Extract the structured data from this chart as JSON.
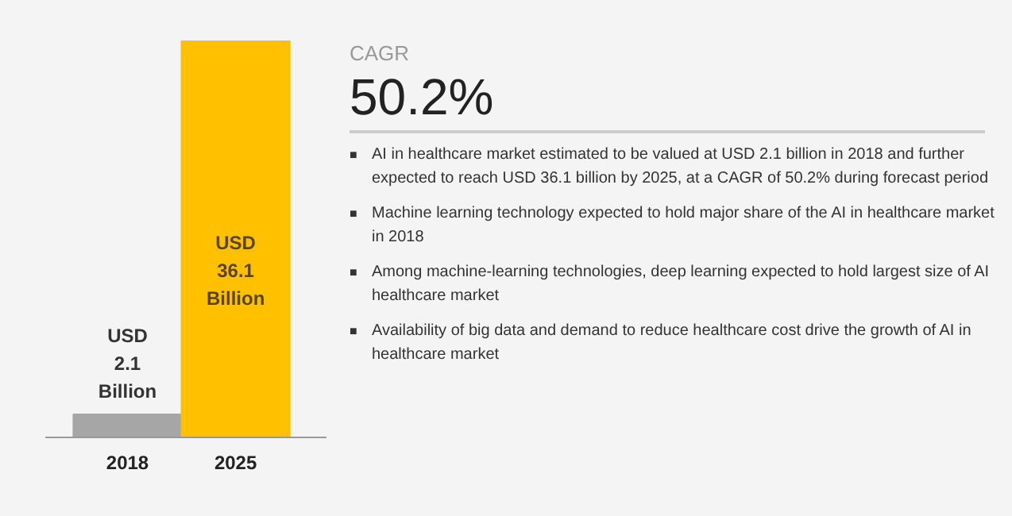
{
  "chart_data": {
    "type": "bar",
    "categories": [
      "2018",
      "2025"
    ],
    "values": [
      2.1,
      36.1
    ],
    "colors": [
      "#a6a6a6",
      "#ffc000"
    ],
    "value_labels": [
      "USD\n2.1\nBillion",
      "USD\n36.1\nBillion"
    ],
    "annotations": [
      "CAGR",
      "50.2%",
      "■ AI in healthcare market estimated to be valued at USD 2.1 billion in 2018 and further expected to reach USD 36.1 billion by 2025, at a CAGR of 50.2% during forecast period",
      "■ Machine learning technology expected to hold major share of the AI in healthcare market in 2018",
      "■ Among machine-learning technologies, deep learning expected to hold largest size of AI healthcare market",
      "■ Availability of big data and demand to reduce healthcare cost drive the growth of AI in healthcare market"
    ]
  }
}
